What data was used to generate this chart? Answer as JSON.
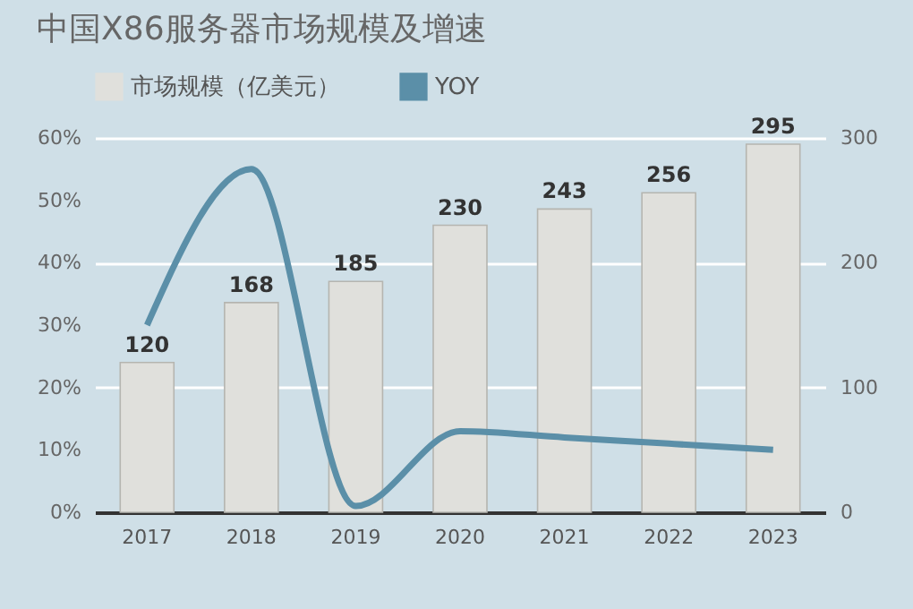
{
  "chart_data": {
    "type": "bar",
    "title": "中国X86服务器市场规模及增速",
    "categories": [
      "2017",
      "2018",
      "2019",
      "2020",
      "2021",
      "2022",
      "2023"
    ],
    "series": [
      {
        "name": "市场规模（亿美元）",
        "axis": "y2",
        "color": "#e0e0dc",
        "values": [
          120,
          168,
          185,
          230,
          243,
          256,
          295
        ],
        "value_labels": [
          "120",
          "168",
          "185",
          "230",
          "243",
          "256",
          "295"
        ]
      },
      {
        "name": "YOY",
        "type": "line",
        "color": "#5b8fa8",
        "values": [
          30,
          55,
          1,
          13,
          12,
          11,
          10
        ]
      }
    ],
    "ylim": [
      0,
      60
    ],
    "yticks": [
      {
        "value": 0,
        "label": "0%"
      },
      {
        "value": 10,
        "label": "10%"
      },
      {
        "value": 20,
        "label": "20%"
      },
      {
        "value": 30,
        "label": "30%"
      },
      {
        "value": 40,
        "label": "40%"
      },
      {
        "value": 50,
        "label": "50%"
      },
      {
        "value": 60,
        "label": "60%"
      }
    ],
    "y2lim": [
      0,
      300
    ],
    "y2ticks": [
      0,
      100,
      200,
      300
    ],
    "grid": "y2",
    "legend": "top left",
    "marker": "none",
    "line_style": "solid"
  }
}
